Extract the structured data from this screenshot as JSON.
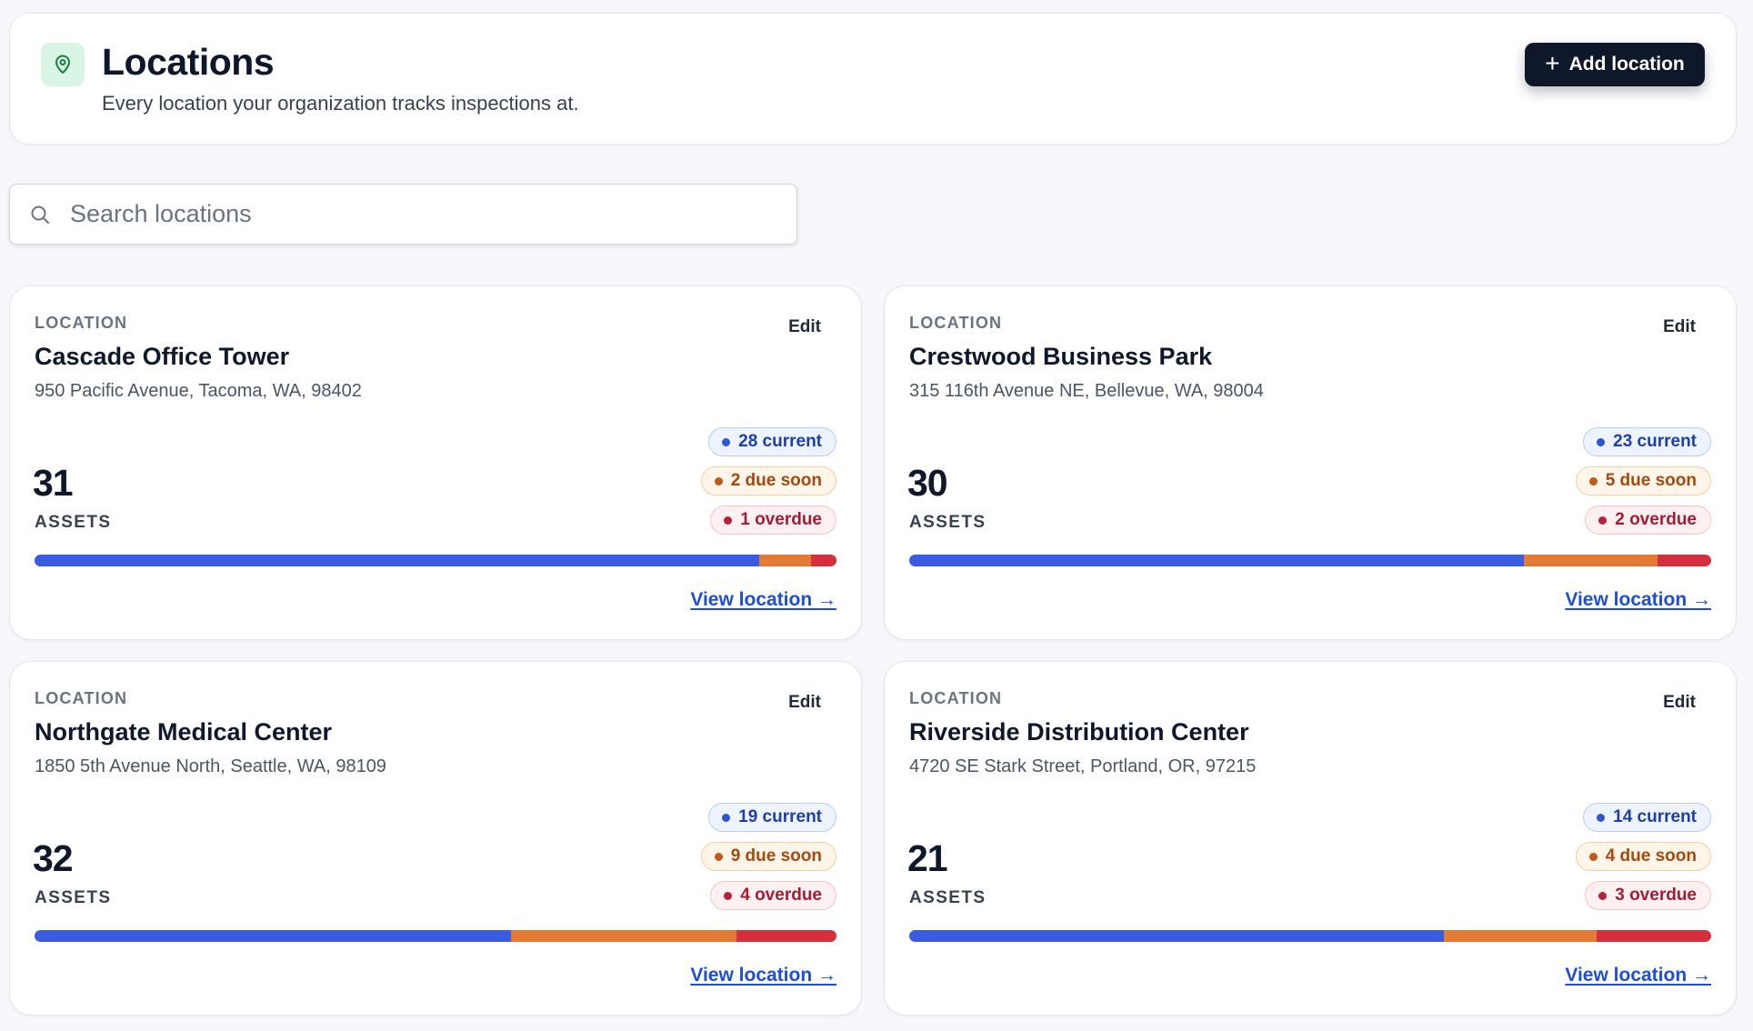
{
  "header": {
    "title": "Locations",
    "subtitle": "Every location your organization tracks inspections at.",
    "icon": "map-pin-icon",
    "add_button_label": "Add location"
  },
  "search": {
    "placeholder": "Search locations",
    "value": ""
  },
  "colors": {
    "current": "#3a5ce0",
    "due_soon": "#e37b35",
    "overdue": "#d6303f",
    "primary_button": "#0f172a",
    "link": "#1d4ed8"
  },
  "locations": [
    {
      "kicker": "LOCATION",
      "name": "Cascade Office Tower",
      "address": "950 Pacific Avenue, Tacoma, WA, 98402",
      "edit_label": "Edit",
      "assets": "31",
      "assets_label": "ASSETS",
      "current": 28,
      "due_soon": 2,
      "overdue": 1,
      "current_label": "28 current",
      "due_soon_label": "2 due soon",
      "overdue_label": "1 overdue",
      "view_label": "View location →"
    },
    {
      "kicker": "LOCATION",
      "name": "Crestwood Business Park",
      "address": "315 116th Avenue NE, Bellevue, WA, 98004",
      "edit_label": "Edit",
      "assets": "30",
      "assets_label": "ASSETS",
      "current": 23,
      "due_soon": 5,
      "overdue": 2,
      "current_label": "23 current",
      "due_soon_label": "5 due soon",
      "overdue_label": "2 overdue",
      "view_label": "View location →"
    },
    {
      "kicker": "LOCATION",
      "name": "Northgate Medical Center",
      "address": "1850 5th Avenue North, Seattle, WA, 98109",
      "edit_label": "Edit",
      "assets": "32",
      "assets_label": "ASSETS",
      "current": 19,
      "due_soon": 9,
      "overdue": 4,
      "current_label": "19 current",
      "due_soon_label": "9 due soon",
      "overdue_label": "4 overdue",
      "view_label": "View location →"
    },
    {
      "kicker": "LOCATION",
      "name": "Riverside Distribution Center",
      "address": "4720 SE Stark Street, Portland, OR, 97215",
      "edit_label": "Edit",
      "assets": "21",
      "assets_label": "ASSETS",
      "current": 14,
      "due_soon": 4,
      "overdue": 3,
      "current_label": "14 current",
      "due_soon_label": "4 due soon",
      "overdue_label": "3 overdue",
      "view_label": "View location →"
    }
  ]
}
